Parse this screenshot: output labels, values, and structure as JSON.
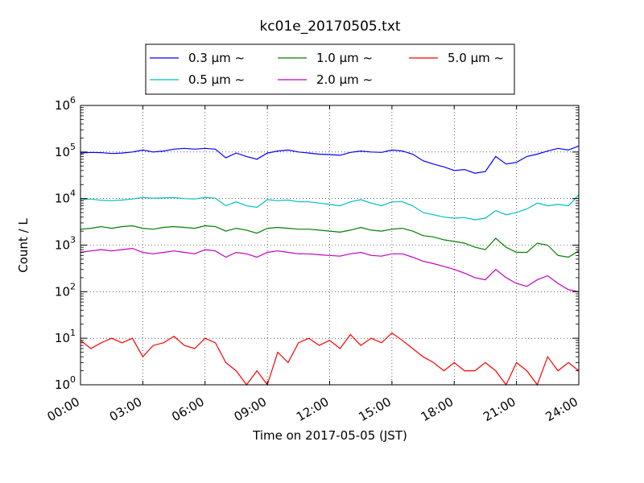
{
  "chart_data": {
    "type": "line",
    "title": "kc01e_20170505.txt",
    "xlabel": "Time on 2017-05-05 (JST)",
    "ylabel": "Count / L",
    "yscale": "log",
    "ylim": [
      1,
      1000000
    ],
    "xlim": [
      "00:00",
      "24:00"
    ],
    "grid": true,
    "legend_position": "top, above plot",
    "x_ticks": [
      "00:00",
      "03:00",
      "06:00",
      "09:00",
      "12:00",
      "15:00",
      "18:00",
      "21:00",
      "24:00"
    ],
    "y_ticks": [
      {
        "base": "10",
        "exp": "0"
      },
      {
        "base": "10",
        "exp": "1"
      },
      {
        "base": "10",
        "exp": "2"
      },
      {
        "base": "10",
        "exp": "3"
      },
      {
        "base": "10",
        "exp": "4"
      },
      {
        "base": "10",
        "exp": "5"
      },
      {
        "base": "10",
        "exp": "6"
      }
    ],
    "x_hours": [
      0,
      0.5,
      1,
      1.5,
      2,
      2.5,
      3,
      3.5,
      4,
      4.5,
      5,
      5.5,
      6,
      6.5,
      7,
      7.5,
      8,
      8.5,
      9,
      9.5,
      10,
      10.5,
      11,
      11.5,
      12,
      12.5,
      13,
      13.5,
      14,
      14.5,
      15,
      15.5,
      16,
      16.5,
      17,
      17.5,
      18,
      18.5,
      19,
      19.5,
      20,
      20.5,
      21,
      21.5,
      22,
      22.5,
      23,
      23.5,
      24
    ],
    "series": [
      {
        "name": "0.3 μm ~",
        "color": "#0000ff",
        "values": [
          95000,
          98000,
          97000,
          93000,
          95000,
          100000,
          110000,
          100000,
          105000,
          115000,
          120000,
          115000,
          120000,
          115000,
          75000,
          95000,
          80000,
          70000,
          95000,
          105000,
          110000,
          100000,
          95000,
          90000,
          88000,
          85000,
          98000,
          105000,
          100000,
          98000,
          110000,
          105000,
          90000,
          65000,
          55000,
          48000,
          40000,
          42000,
          35000,
          38000,
          80000,
          55000,
          60000,
          80000,
          90000,
          105000,
          120000,
          110000,
          135000
        ]
      },
      {
        "name": "0.5 μm ~",
        "color": "#00bfbf",
        "values": [
          9500,
          9800,
          9200,
          9000,
          9300,
          9800,
          10500,
          10200,
          10300,
          10500,
          10000,
          9800,
          10500,
          10200,
          7000,
          8500,
          7000,
          6500,
          9500,
          9000,
          9300,
          8500,
          8500,
          8000,
          7500,
          7000,
          8500,
          9500,
          8000,
          7000,
          8500,
          8500,
          7000,
          5000,
          4500,
          4000,
          3800,
          3900,
          3500,
          3800,
          5500,
          4500,
          5000,
          6000,
          8000,
          7000,
          7500,
          7000,
          12000
        ]
      },
      {
        "name": "1.0 μm ~",
        "color": "#008000",
        "values": [
          2200,
          2300,
          2500,
          2300,
          2500,
          2600,
          2300,
          2200,
          2400,
          2500,
          2400,
          2300,
          2600,
          2500,
          2000,
          2300,
          2100,
          1800,
          2300,
          2400,
          2300,
          2200,
          2200,
          2100,
          2000,
          1900,
          2100,
          2400,
          2100,
          2000,
          2200,
          2300,
          2000,
          1600,
          1500,
          1300,
          1200,
          1100,
          900,
          800,
          1400,
          900,
          700,
          700,
          1100,
          1000,
          600,
          550,
          750
        ]
      },
      {
        "name": "2.0 μm ~",
        "color": "#bf00bf",
        "values": [
          700,
          750,
          800,
          750,
          800,
          850,
          700,
          650,
          700,
          750,
          700,
          650,
          800,
          750,
          550,
          700,
          650,
          550,
          700,
          750,
          700,
          650,
          650,
          620,
          600,
          580,
          650,
          700,
          600,
          580,
          650,
          650,
          550,
          450,
          400,
          350,
          300,
          250,
          200,
          180,
          300,
          200,
          150,
          130,
          180,
          220,
          150,
          110,
          100
        ]
      },
      {
        "name": "5.0 μm ~",
        "color": "#ff0000",
        "values": [
          9,
          6,
          8,
          10,
          8,
          10,
          4,
          7,
          8,
          11,
          7,
          6,
          10,
          8,
          3,
          2,
          1,
          2,
          1,
          5,
          3,
          8,
          10,
          7,
          9,
          6,
          12,
          7,
          10,
          8,
          13,
          9,
          6,
          4,
          3,
          2,
          3,
          2,
          2,
          3,
          2,
          1,
          3,
          2,
          1,
          4,
          2,
          3,
          2
        ]
      }
    ]
  }
}
